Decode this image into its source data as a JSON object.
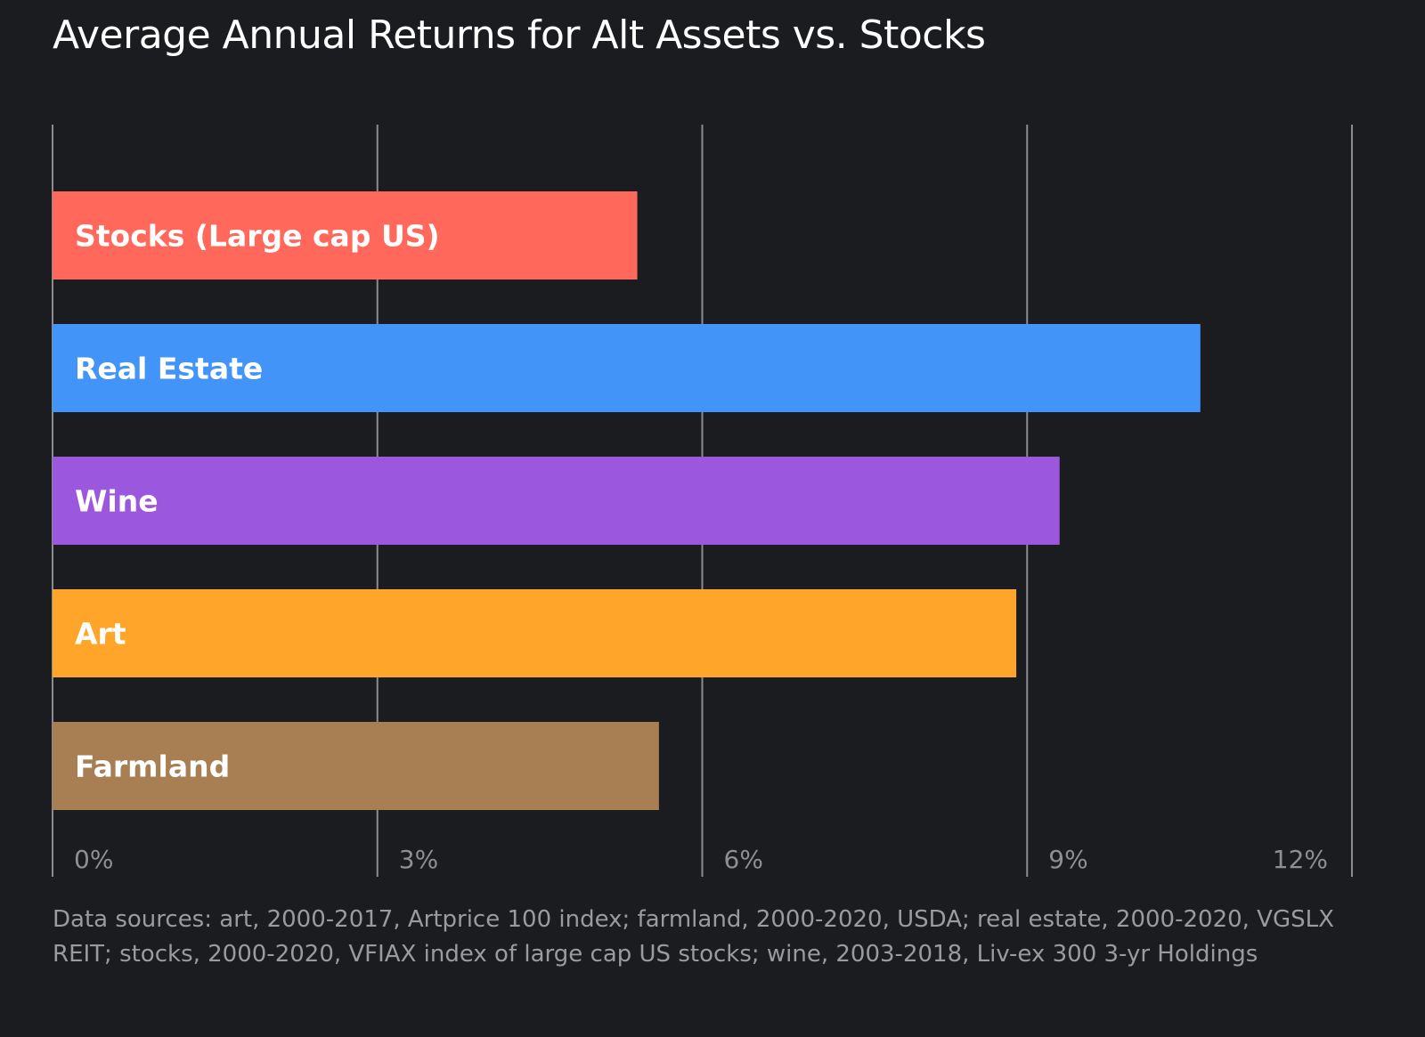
{
  "chart_data": {
    "type": "bar",
    "orientation": "horizontal",
    "title": "Average Annual Returns for Alt Assets vs. Stocks",
    "categories": [
      "Stocks (Large cap US)",
      "Real Estate",
      "Wine",
      "Art",
      "Farmland"
    ],
    "values": [
      5.4,
      10.6,
      9.3,
      8.9,
      5.6
    ],
    "colors": [
      "#ff685a",
      "#4294f8",
      "#9b57dd",
      "#ffa62a",
      "#a77f53"
    ],
    "xlim": [
      0,
      12
    ],
    "ticks": [
      0,
      3,
      6,
      9,
      12
    ],
    "tick_labels": [
      "0%",
      "3%",
      "6%",
      "9%",
      "12%"
    ],
    "xlabel": "",
    "ylabel": "",
    "grid": true,
    "legend": "none"
  },
  "footnote": "Data sources: art, 2000-2017, Artprice 100 index; farmland, 2000-2020, USDA; real estate, 2000-2020, VGSLX REIT; stocks, 2000-2020, VFIAX index of large cap US stocks; wine, 2003-2018, Liv-ex 300 3-yr Holdings"
}
